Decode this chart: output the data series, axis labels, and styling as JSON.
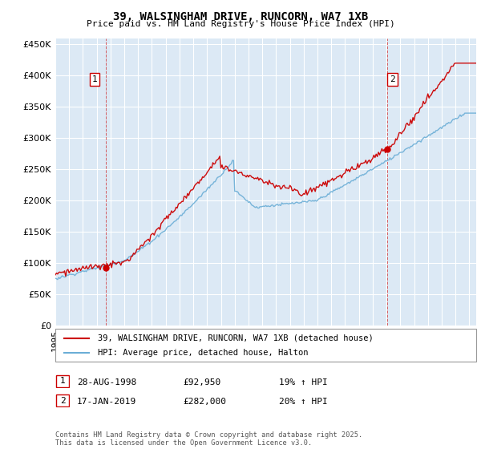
{
  "title": "39, WALSINGHAM DRIVE, RUNCORN, WA7 1XB",
  "subtitle": "Price paid vs. HM Land Registry's House Price Index (HPI)",
  "legend_line1": "39, WALSINGHAM DRIVE, RUNCORN, WA7 1XB (detached house)",
  "legend_line2": "HPI: Average price, detached house, Halton",
  "table_rows": [
    {
      "num": "1",
      "date": "28-AUG-1998",
      "price": "£92,950",
      "hpi": "19% ↑ HPI"
    },
    {
      "num": "2",
      "date": "17-JAN-2019",
      "price": "£282,000",
      "hpi": "20% ↑ HPI"
    }
  ],
  "footnote": "Contains HM Land Registry data © Crown copyright and database right 2025.\nThis data is licensed under the Open Government Licence v3.0.",
  "sale1_date_num": 1998.66,
  "sale2_date_num": 2019.04,
  "sale1_price": 92950,
  "sale2_price": 282000,
  "hpi_color": "#6baed6",
  "price_color": "#cc0000",
  "dashed_color": "#cc0000",
  "ylim": [
    0,
    460000
  ],
  "yticks": [
    0,
    50000,
    100000,
    150000,
    200000,
    250000,
    300000,
    350000,
    400000,
    450000
  ],
  "xlim_start": 1995,
  "xlim_end": 2025.5,
  "plot_bg_color": "#dce9f5",
  "background_color": "#ffffff",
  "grid_color": "#ffffff"
}
